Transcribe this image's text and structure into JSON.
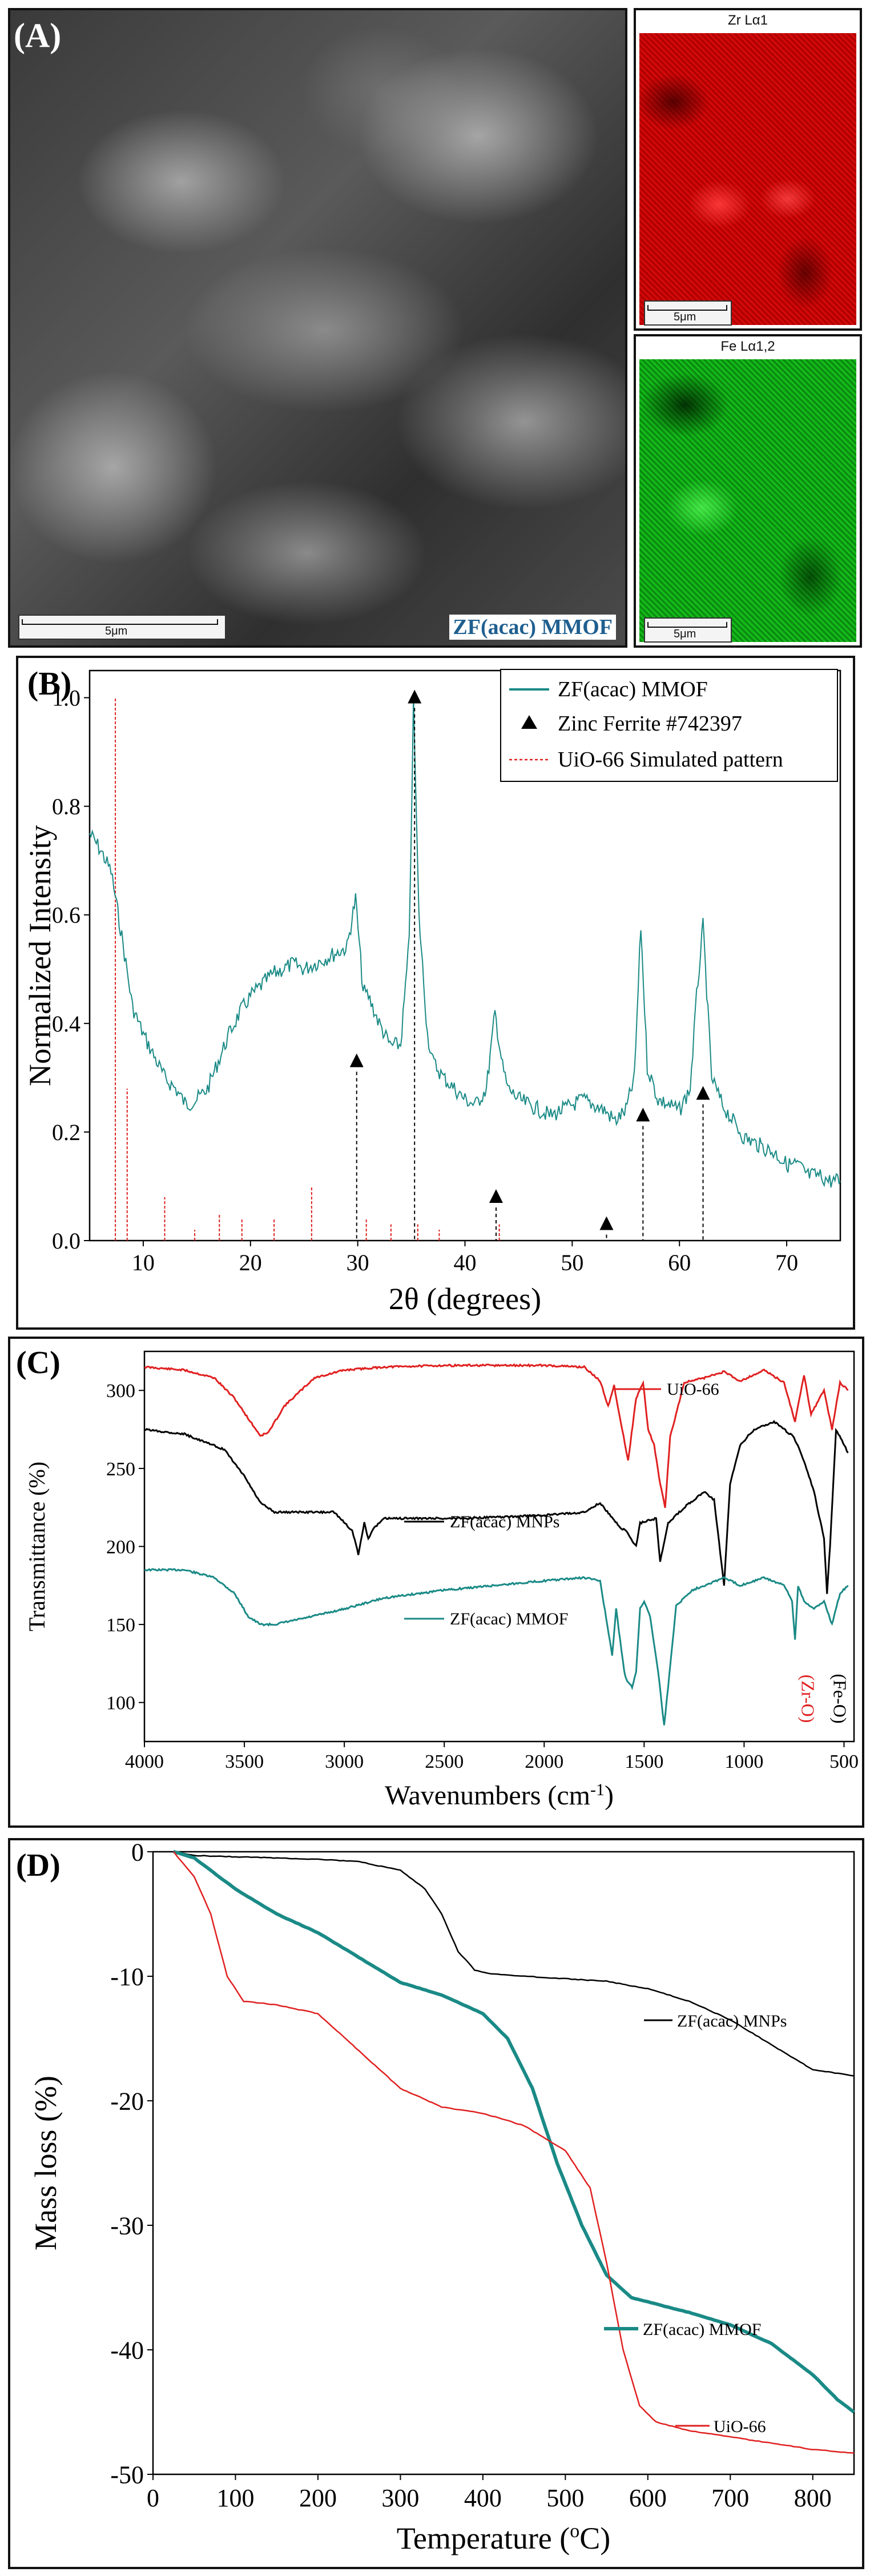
{
  "panel_a": {
    "label": "(A)",
    "main_caption": "ZF(acac) MMOF",
    "main_scale": "5μm",
    "zr_title": "Zr Lα1",
    "zr_scale": "5μm",
    "fe_title": "Fe Lα1,2",
    "fe_scale": "5μm",
    "colors": {
      "zr": "#e00000",
      "fe": "#12c21a",
      "caption": "#1f5f8f"
    }
  },
  "chart_data": [
    {
      "panel": "(B)",
      "type": "line",
      "xlabel": "2θ (degrees)",
      "ylabel": "Normalized Intensity",
      "xlim": [
        5,
        75
      ],
      "ylim": [
        0,
        1.05
      ],
      "x_ticks": [
        "10",
        "20",
        "30",
        "40",
        "50",
        "60",
        "70"
      ],
      "y_ticks": [
        "0.0",
        "0.2",
        "0.4",
        "0.6",
        "0.8",
        "1.0"
      ],
      "legend": [
        "ZF(acac) MMOF",
        "Zinc Ferrite #742397",
        "UiO-66 Simulated pattern"
      ],
      "legend_position": "top-right",
      "series": [
        {
          "name": "ZF(acac) MMOF",
          "color": "#1a8a86",
          "x": [
            5,
            6,
            7,
            8,
            9,
            10,
            11,
            12,
            13,
            14,
            15,
            16,
            17,
            18,
            19,
            20,
            21,
            22,
            23,
            24,
            25,
            26,
            27,
            28,
            29,
            29.8,
            30.5,
            31,
            32,
            33,
            34,
            34.8,
            35.2,
            35.7,
            36.5,
            37,
            38,
            39,
            40,
            41,
            42,
            42.8,
            43.5,
            44,
            45,
            46,
            47,
            48,
            49,
            50,
            51,
            52,
            53,
            54,
            55,
            55.8,
            56.4,
            57,
            58,
            59,
            60,
            61,
            61.6,
            62.2,
            63,
            64,
            65,
            66,
            67,
            68,
            69,
            70,
            71,
            72,
            73,
            74,
            75
          ],
          "y": [
            0.75,
            0.72,
            0.68,
            0.56,
            0.43,
            0.38,
            0.34,
            0.3,
            0.28,
            0.25,
            0.26,
            0.28,
            0.33,
            0.38,
            0.42,
            0.45,
            0.47,
            0.49,
            0.5,
            0.51,
            0.5,
            0.51,
            0.52,
            0.53,
            0.54,
            0.63,
            0.46,
            0.45,
            0.4,
            0.36,
            0.36,
            0.55,
            0.99,
            0.6,
            0.38,
            0.33,
            0.3,
            0.28,
            0.26,
            0.25,
            0.28,
            0.42,
            0.32,
            0.28,
            0.26,
            0.25,
            0.24,
            0.23,
            0.24,
            0.25,
            0.26,
            0.25,
            0.24,
            0.22,
            0.24,
            0.3,
            0.58,
            0.32,
            0.26,
            0.25,
            0.24,
            0.28,
            0.45,
            0.58,
            0.3,
            0.25,
            0.22,
            0.19,
            0.18,
            0.17,
            0.16,
            0.14,
            0.14,
            0.12,
            0.12,
            0.11,
            0.11
          ]
        },
        {
          "name": "Zinc Ferrite #742397",
          "color": "#000000",
          "x": [
            29.9,
            35.3,
            42.9,
            53.2,
            56.6,
            62.2
          ],
          "y": [
            0.33,
            1.0,
            0.08,
            0.03,
            0.23,
            0.27
          ]
        },
        {
          "name": "UiO-66 Simulated pattern",
          "color": "#e02020",
          "x": [
            7.4,
            8.5,
            12.0,
            14.8,
            17.1,
            19.2,
            22.2,
            25.7,
            30.8,
            33.1,
            35.6,
            37.6,
            43.2
          ],
          "y": [
            1.0,
            0.28,
            0.08,
            0.02,
            0.05,
            0.04,
            0.04,
            0.1,
            0.04,
            0.03,
            0.03,
            0.02,
            0.03
          ]
        }
      ]
    },
    {
      "panel": "(C)",
      "type": "line",
      "xlabel": "Wavenumbers (cm",
      "xlabel_sup": "-1",
      "xlabel_end": ")",
      "ylabel": "Transmittance (%)",
      "xlim": [
        4000,
        450
      ],
      "ylim": [
        75,
        325
      ],
      "x_ticks": [
        "4000",
        "3500",
        "3000",
        "2500",
        "2000",
        "1500",
        "1000",
        "500"
      ],
      "y_ticks": [
        "100",
        "150",
        "200",
        "250",
        "300"
      ],
      "annotations": [
        "(Zr-O)",
        "(Fe-O)"
      ],
      "series": [
        {
          "name": "UiO-66",
          "color": "#e02020",
          "x": [
            4000,
            3800,
            3650,
            3550,
            3470,
            3420,
            3380,
            3300,
            3150,
            3000,
            2800,
            2500,
            2000,
            1800,
            1720,
            1680,
            1650,
            1620,
            1580,
            1540,
            1505,
            1480,
            1450,
            1420,
            1395,
            1370,
            1300,
            1200,
            1100,
            1020,
            900,
            800,
            745,
            700,
            665,
            600,
            560,
            520,
            480
          ],
          "y": [
            315,
            313,
            308,
            295,
            280,
            271,
            273,
            290,
            308,
            313,
            315,
            316,
            316,
            315,
            306,
            290,
            303,
            282,
            255,
            295,
            305,
            275,
            265,
            240,
            225,
            270,
            305,
            308,
            312,
            306,
            313,
            305,
            280,
            310,
            285,
            300,
            275,
            305,
            300
          ]
        },
        {
          "name": "ZF(acac) MNPs",
          "color": "#000000",
          "x": [
            4000,
            3800,
            3600,
            3500,
            3420,
            3350,
            3200,
            3050,
            2960,
            2930,
            2900,
            2880,
            2850,
            2800,
            2600,
            2400,
            2000,
            1800,
            1720,
            1620,
            1590,
            1540,
            1520,
            1440,
            1420,
            1380,
            1300,
            1200,
            1150,
            1100,
            1070,
            1020,
            950,
            850,
            800,
            750,
            700,
            650,
            600,
            585,
            570,
            540,
            480
          ],
          "y": [
            275,
            272,
            262,
            245,
            228,
            222,
            222,
            222,
            210,
            195,
            215,
            205,
            212,
            218,
            218,
            218,
            220,
            222,
            228,
            212,
            210,
            200,
            215,
            218,
            190,
            215,
            225,
            235,
            230,
            175,
            240,
            265,
            275,
            280,
            275,
            270,
            255,
            235,
            205,
            170,
            200,
            275,
            260
          ]
        },
        {
          "name": "ZF(acac) MMOF",
          "color": "#1a8a86",
          "x": [
            4000,
            3800,
            3650,
            3550,
            3480,
            3420,
            3350,
            3200,
            3000,
            2800,
            2500,
            2000,
            1800,
            1720,
            1660,
            1640,
            1620,
            1600,
            1590,
            1560,
            1540,
            1520,
            1500,
            1470,
            1430,
            1400,
            1380,
            1340,
            1260,
            1200,
            1100,
            1020,
            900,
            800,
            760,
            745,
            730,
            700,
            650,
            600,
            560,
            520,
            480
          ],
          "y": [
            185,
            185,
            180,
            170,
            155,
            150,
            150,
            154,
            160,
            167,
            172,
            178,
            180,
            178,
            130,
            160,
            140,
            120,
            115,
            110,
            120,
            160,
            165,
            155,
            120,
            85,
            110,
            162,
            172,
            175,
            180,
            175,
            180,
            175,
            165,
            140,
            175,
            165,
            160,
            165,
            150,
            170,
            175
          ]
        }
      ],
      "legend_labels": [
        "UiO-66",
        "ZF(acac) MNPs",
        "ZF(acac) MMOF"
      ]
    },
    {
      "panel": "(D)",
      "type": "line",
      "xlabel": "Temperature (",
      "xlabel_sup": "o",
      "xlabel_end": "C)",
      "ylabel": "Mass loss (%)",
      "xlim": [
        0,
        850
      ],
      "ylim": [
        -50,
        0
      ],
      "x_ticks": [
        "0",
        "100",
        "200",
        "300",
        "400",
        "500",
        "600",
        "700",
        "800"
      ],
      "y_ticks": [
        "0",
        "-10",
        "-20",
        "-30",
        "-40",
        "-50"
      ],
      "series": [
        {
          "name": "ZF(acac) MNPs",
          "color": "#000000",
          "x": [
            25,
            50,
            100,
            150,
            200,
            250,
            300,
            330,
            350,
            370,
            390,
            410,
            450,
            500,
            550,
            600,
            650,
            700,
            750,
            800,
            850
          ],
          "y": [
            0,
            -0.3,
            -0.4,
            -0.5,
            -0.6,
            -0.8,
            -1.5,
            -3,
            -5,
            -8,
            -9.5,
            -9.8,
            -10,
            -10.2,
            -10.4,
            -11,
            -12,
            -13.5,
            -15.5,
            -17.5,
            -18
          ]
        },
        {
          "name": "ZF(acac) MMOF",
          "color": "#1a8a86",
          "x": [
            25,
            50,
            100,
            150,
            200,
            250,
            300,
            350,
            400,
            430,
            460,
            490,
            520,
            550,
            580,
            620,
            650,
            700,
            750,
            800,
            830,
            850
          ],
          "y": [
            0,
            -0.5,
            -3,
            -5,
            -6.5,
            -8.5,
            -10.5,
            -11.5,
            -13,
            -15,
            -19,
            -25,
            -30,
            -34,
            -35.8,
            -36.5,
            -37,
            -38,
            -39.5,
            -42,
            -44,
            -45
          ]
        },
        {
          "name": "UiO-66",
          "color": "#e02020",
          "x": [
            25,
            50,
            70,
            90,
            110,
            150,
            200,
            250,
            300,
            350,
            400,
            450,
            500,
            530,
            550,
            570,
            590,
            610,
            650,
            700,
            750,
            800,
            850
          ],
          "y": [
            0,
            -2,
            -5,
            -10,
            -12,
            -12.3,
            -13,
            -16,
            -19,
            -20.5,
            -21,
            -22,
            -24,
            -27,
            -33,
            -40,
            -44.5,
            -45.8,
            -46.5,
            -47,
            -47.5,
            -48,
            -48.3
          ]
        }
      ]
    }
  ]
}
